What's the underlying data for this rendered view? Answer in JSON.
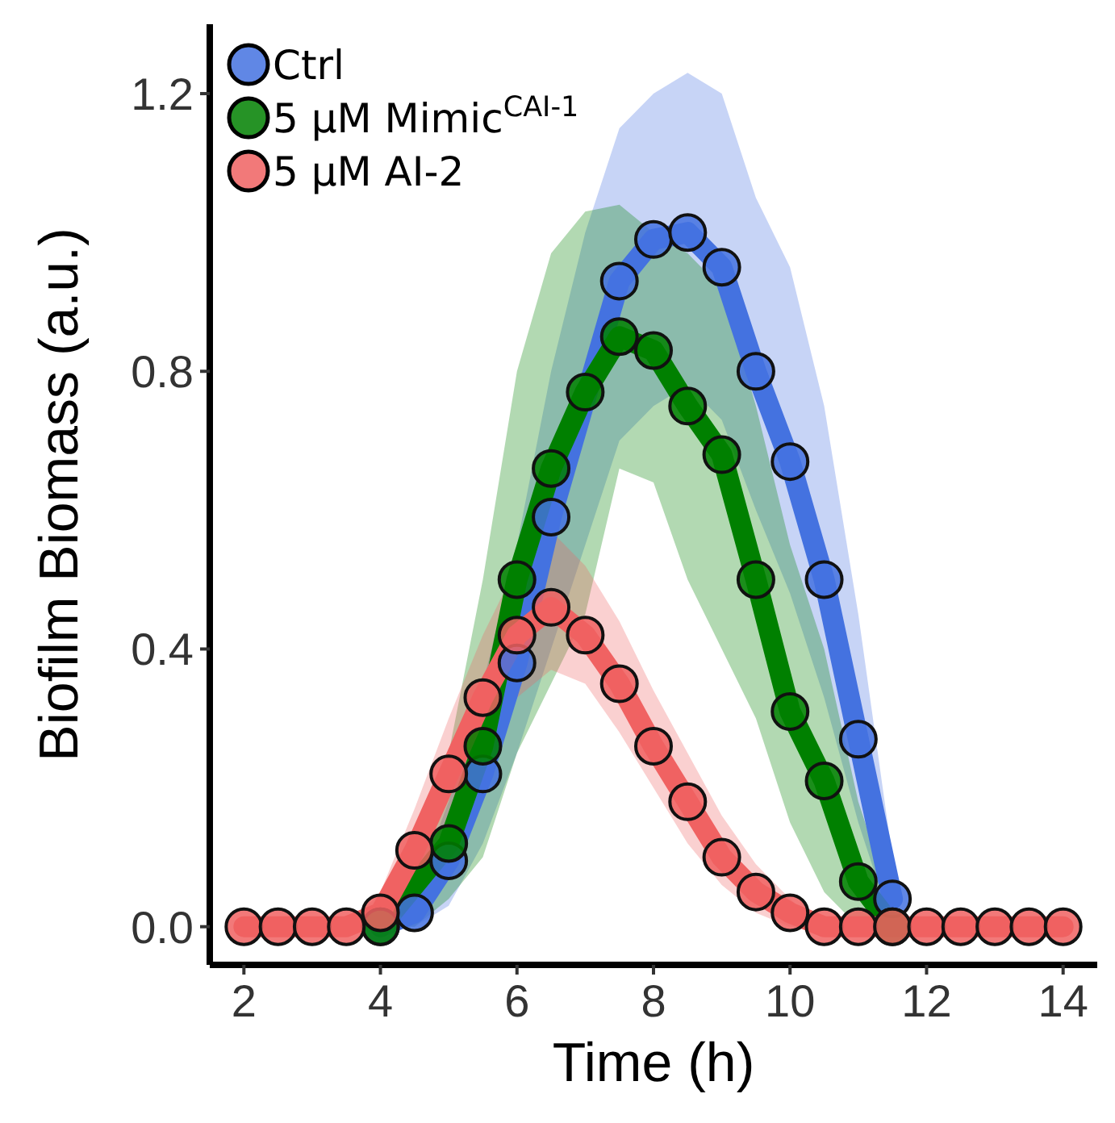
{
  "chart_data": {
    "type": "line",
    "xlabel": "Time (h)",
    "ylabel": "Biofilm Biomass (a.u.)",
    "xlim": [
      1.5,
      14.5
    ],
    "ylim": [
      -0.055,
      1.3
    ],
    "xticks": [
      2,
      4,
      6,
      8,
      10,
      12,
      14
    ],
    "yticks": [
      {
        "value": 0,
        "label": "0.0"
      },
      0.4,
      0.8,
      1.2
    ],
    "grid": false,
    "legend": "top left",
    "marker": "circle",
    "line_style": "solid",
    "series": [
      {
        "name": "Ctrl",
        "color": "#4472e0",
        "x": [
          4,
          4.5,
          5,
          5.5,
          6,
          6.5,
          7,
          7.5,
          8,
          8.5,
          9,
          9.5,
          10,
          10.5,
          11,
          11.5
        ],
        "values": [
          0,
          0.02,
          0.095,
          0.22,
          0.38,
          0.59,
          null,
          0.93,
          0.99,
          1.0,
          0.95,
          0.8,
          0.67,
          0.5,
          0.27,
          0.04
        ],
        "lower": [
          0,
          0,
          0.03,
          0.12,
          0.25,
          0.4,
          0.55,
          0.7,
          0.75,
          0.78,
          0.73,
          0.6,
          0.48,
          0.33,
          0.15,
          0
        ],
        "upper": [
          0.02,
          0.05,
          0.18,
          0.35,
          0.55,
          0.8,
          1.0,
          1.15,
          1.2,
          1.23,
          1.2,
          1.05,
          0.95,
          0.75,
          0.45,
          0.1
        ]
      },
      {
        "name": "5 μM Mimic$^{CAI-1}$",
        "color": "#008000",
        "x": [
          4,
          4.5,
          5,
          5.5,
          6,
          6.5,
          7,
          7.5,
          8,
          8.5,
          9,
          9.5,
          10,
          10.5,
          11,
          11.5
        ],
        "values": [
          0,
          null,
          0.12,
          0.26,
          0.5,
          0.66,
          0.77,
          0.85,
          0.83,
          0.75,
          0.68,
          0.5,
          0.31,
          0.21,
          0.065,
          0
        ],
        "lower": [
          0,
          0,
          0.04,
          0.1,
          0.25,
          0.35,
          0.45,
          0.66,
          0.64,
          0.5,
          0.4,
          0.3,
          0.15,
          0.05,
          0,
          0
        ],
        "upper": [
          0.02,
          0.07,
          0.25,
          0.5,
          0.8,
          0.97,
          1.03,
          1.04,
          1.0,
          0.97,
          0.92,
          0.75,
          0.55,
          0.4,
          0.18,
          0.03
        ]
      },
      {
        "name": "5 μM AI-2",
        "color": "#f06262",
        "x": [
          2,
          2.5,
          3,
          3.5,
          4,
          4.5,
          5,
          5.5,
          6,
          6.5,
          7,
          7.5,
          8,
          8.5,
          9,
          9.5,
          10,
          10.5,
          11,
          11.5,
          12,
          12.5,
          13,
          13.5,
          14
        ],
        "values": [
          0,
          0,
          0,
          0,
          0.02,
          0.11,
          0.22,
          0.33,
          0.42,
          0.46,
          0.42,
          0.35,
          0.26,
          0.18,
          0.1,
          0.05,
          0.02,
          0,
          0,
          0,
          0,
          0,
          0,
          0,
          0
        ],
        "lower": [
          0,
          0,
          0,
          0,
          0,
          0.05,
          0.15,
          0.25,
          0.33,
          0.37,
          0.35,
          0.28,
          0.2,
          0.12,
          0.06,
          0.02,
          0,
          0,
          0,
          0,
          0,
          0,
          0,
          0,
          0
        ],
        "upper": [
          0,
          0,
          0,
          0,
          0.05,
          0.17,
          0.3,
          0.42,
          0.52,
          0.57,
          0.52,
          0.44,
          0.34,
          0.25,
          0.16,
          0.09,
          0.04,
          0,
          0,
          0,
          0,
          0,
          0,
          0,
          0
        ]
      }
    ]
  }
}
